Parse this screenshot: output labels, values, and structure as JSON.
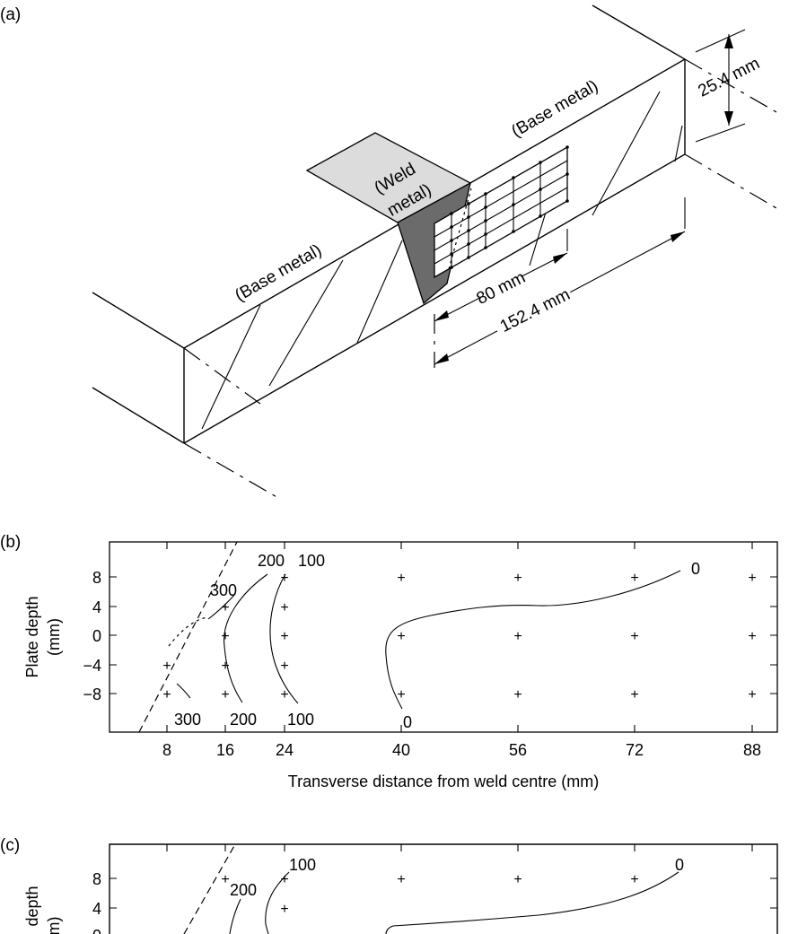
{
  "panels": {
    "a": {
      "label": "(a)",
      "weld_metal": "(Weld metal)",
      "weld_line1": "(Weld",
      "weld_line2": "metal)",
      "base_left": "(Base metal)",
      "base_right": "(Base metal)",
      "dim_thickness": "25.4 mm",
      "dim_80": "80 mm",
      "dim_152": "152.4 mm"
    },
    "b": {
      "label": "(b)",
      "ylabel_line1": "Plate depth",
      "ylabel_line2": "(mm)",
      "xlabel": "Transverse distance from weld centre (mm)",
      "xticks": [
        "8",
        "16",
        "24",
        "40",
        "56",
        "72",
        "88"
      ],
      "yticks": [
        "8",
        "4",
        "0",
        "−4",
        "−8"
      ],
      "contours_top": [
        "300",
        "200",
        "100",
        "0"
      ],
      "contours_bottom": [
        "300",
        "200",
        "100",
        "0"
      ]
    },
    "c": {
      "label": "(c)",
      "ylabel_line1": "depth",
      "ylabel_line2": "m)",
      "yticks": [
        "8",
        "4",
        "0"
      ],
      "contours_top": [
        "200",
        "100",
        "0"
      ]
    }
  },
  "chart_data": [
    {
      "type": "contour",
      "panel": "b",
      "xlabel": "Transverse distance from weld centre (mm)",
      "ylabel": "Plate depth (mm)",
      "xticks": [
        8,
        16,
        24,
        40,
        56,
        72,
        88
      ],
      "yticks": [
        8,
        4,
        0,
        -4,
        -8
      ],
      "xlim": [
        0,
        92
      ],
      "ylim": [
        -14,
        12
      ],
      "contour_levels": [
        300,
        200,
        100,
        0
      ],
      "measurement_points": [
        [
          8,
          -4
        ],
        [
          8,
          -8
        ],
        [
          16,
          4
        ],
        [
          16,
          0
        ],
        [
          16,
          -4
        ],
        [
          16,
          -8
        ],
        [
          24,
          8
        ],
        [
          24,
          4
        ],
        [
          24,
          0
        ],
        [
          24,
          -4
        ],
        [
          24,
          -8
        ],
        [
          40,
          8
        ],
        [
          40,
          0
        ],
        [
          40,
          -8
        ],
        [
          56,
          8
        ],
        [
          56,
          0
        ],
        [
          56,
          -8
        ],
        [
          72,
          8
        ],
        [
          72,
          0
        ],
        [
          72,
          -8
        ],
        [
          88,
          8
        ],
        [
          88,
          0
        ],
        [
          88,
          -8
        ]
      ]
    },
    {
      "type": "contour",
      "panel": "c",
      "ylabel": "Plate depth (mm)",
      "yticks": [
        8,
        4,
        0
      ],
      "contour_levels": [
        200,
        100,
        0
      ],
      "measurement_points": [
        [
          16,
          8
        ],
        [
          24,
          8
        ],
        [
          24,
          4
        ],
        [
          40,
          8
        ],
        [
          56,
          8
        ],
        [
          72,
          8
        ]
      ]
    }
  ]
}
